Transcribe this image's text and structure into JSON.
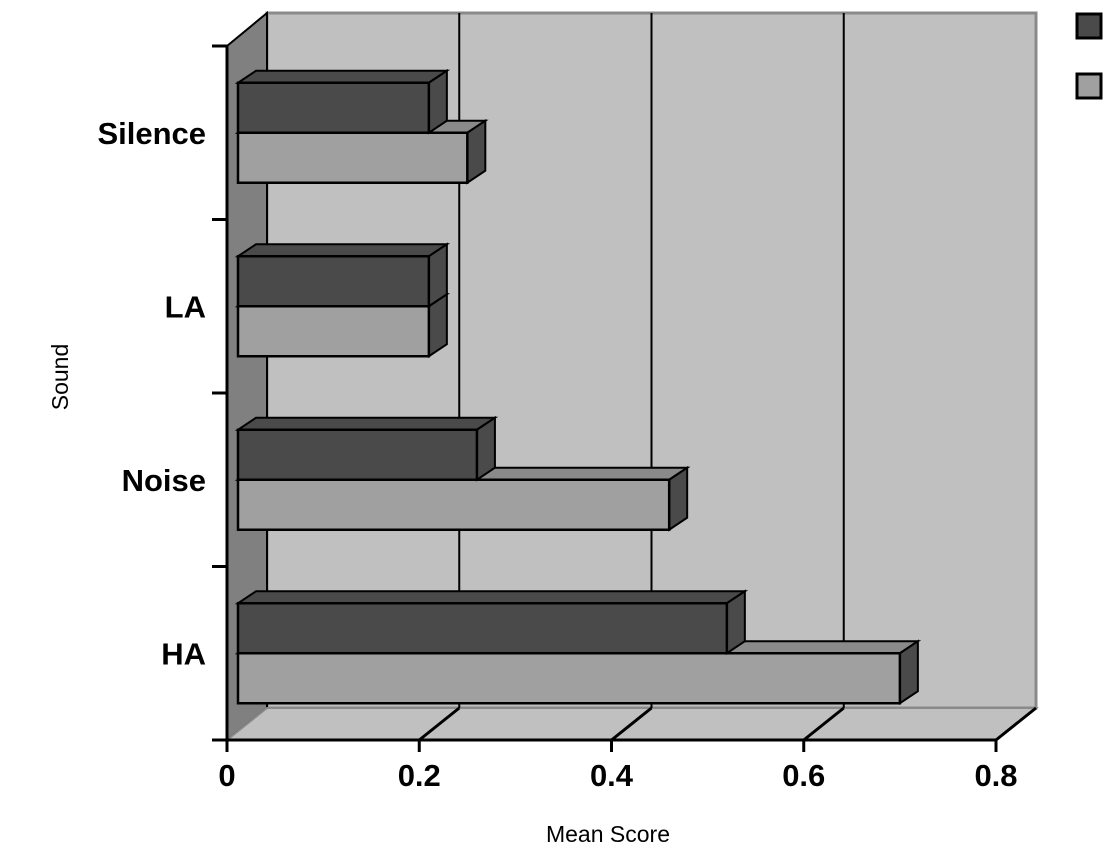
{
  "chart_data": {
    "type": "bar",
    "orientation": "horizontal",
    "style": "3d",
    "title": "",
    "xlabel": "Mean Score",
    "ylabel": "Sound",
    "categories": [
      "Silence",
      "LA",
      "Noise",
      "HA"
    ],
    "series": [
      {
        "values": [
          0.21,
          0.21,
          0.26,
          0.52
        ],
        "color": "#4a4a4a"
      },
      {
        "values": [
          0.25,
          0.21,
          0.46,
          0.7
        ],
        "color": "#a0a0a0"
      }
    ],
    "xlim": [
      0,
      0.8
    ],
    "xticks": [
      "0",
      "0.2",
      "0.4",
      "0.6",
      "0.8"
    ],
    "grid": true,
    "legend_position": "top-right",
    "colors": {
      "wall": "#c0c0c0",
      "side_wall": "#808080",
      "floor": "#c0c0c0",
      "gridline": "#000000"
    }
  }
}
